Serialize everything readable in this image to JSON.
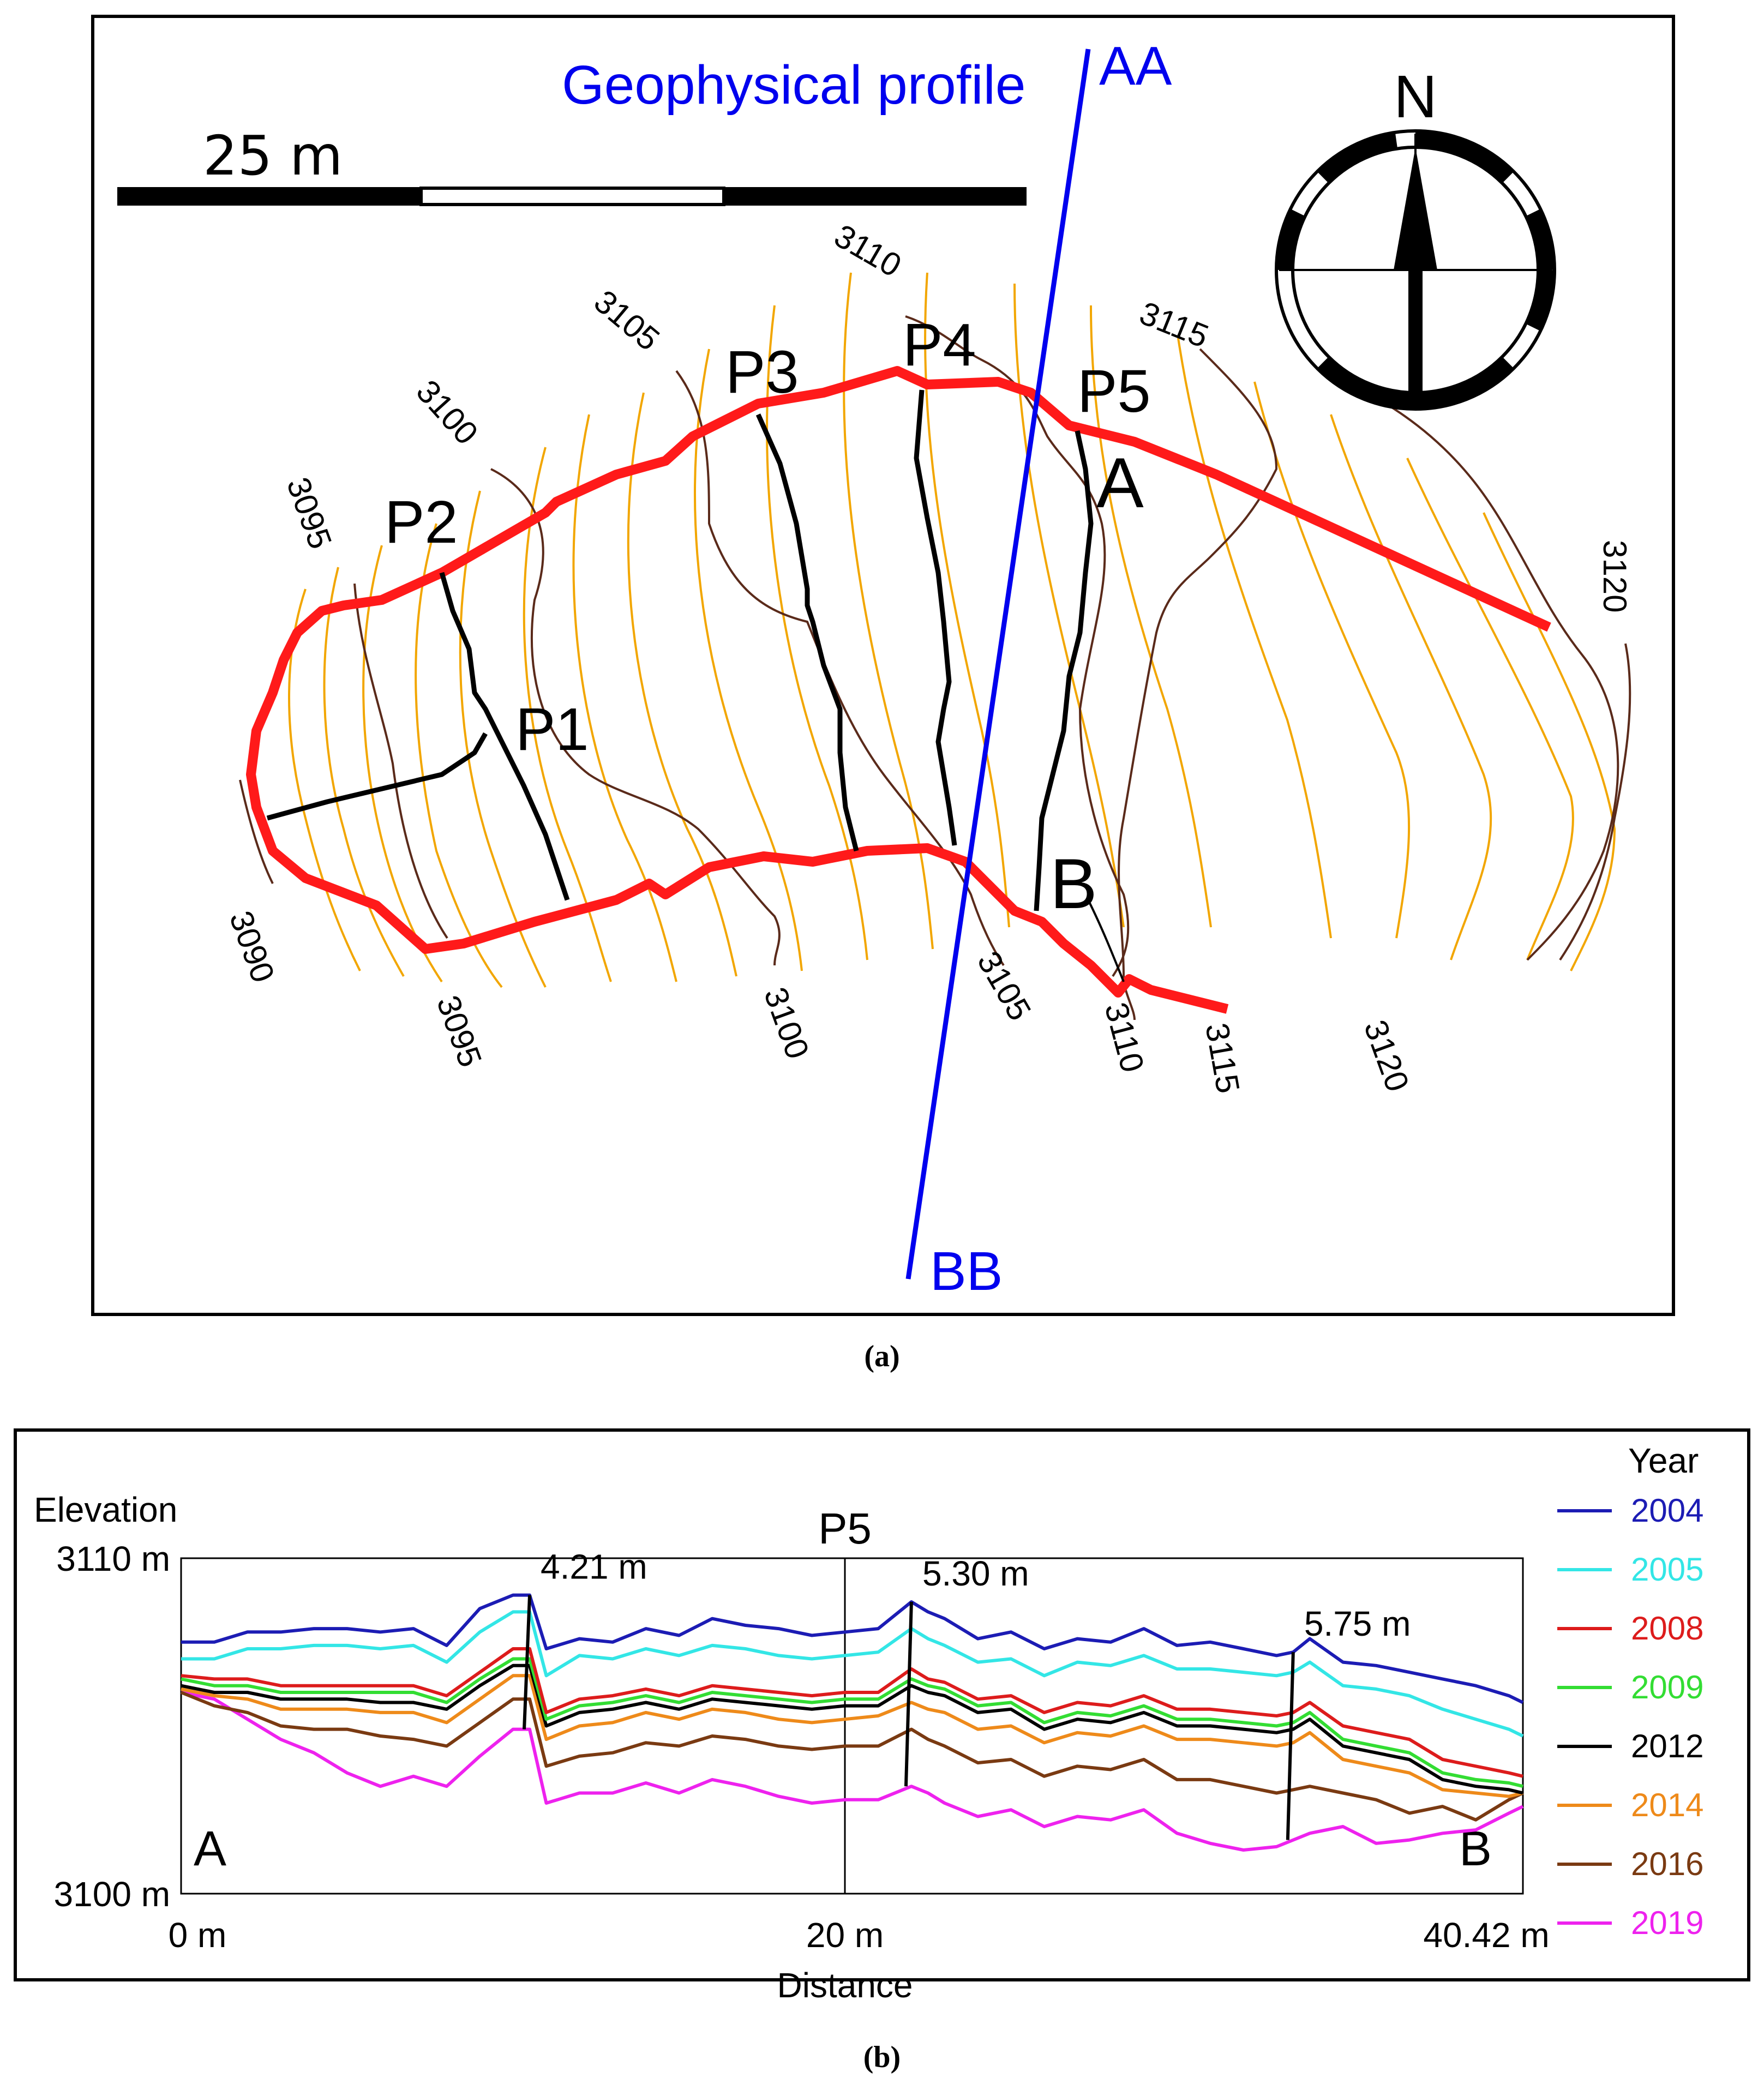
{
  "panel_a": {
    "profile_label": "Geophysical profile",
    "profile_end_top": "AA",
    "profile_end_bottom": "BB",
    "scale_label": "25 m",
    "north_label": "N",
    "contour_labels": [
      "3090",
      "3095",
      "3095",
      "3100",
      "3100",
      "3105",
      "3105",
      "3110",
      "3110",
      "3115",
      "3115",
      "3120",
      "3120"
    ],
    "profile_labels": [
      "P1",
      "P2",
      "P3",
      "P4",
      "P5"
    ],
    "section_start": "A",
    "section_end": "B",
    "caption": "(a)",
    "colors": {
      "boundary": "#ff1a1a",
      "profile": "#0000ee",
      "contour_major": "#5a2a1a",
      "contour_minor": "#f2a600",
      "profiles": "#000000"
    }
  },
  "panel_b": {
    "caption": "(b)",
    "ylabel": "Elevation",
    "xlabel": "Distance",
    "title": "P5",
    "y_ticks": [
      "3110 m",
      "3100 m"
    ],
    "x_ticks": [
      "0 m",
      "20 m",
      "40.42 m"
    ],
    "start_label": "A",
    "end_label": "B",
    "legend_title": "Year",
    "offset_labels": [
      "4.21 m",
      "5.30 m",
      "5.75 m"
    ]
  },
  "chart_data": {
    "type": "line",
    "title": "P5",
    "xlabel": "Distance",
    "ylabel": "Elevation",
    "xlim": [
      0,
      40.42
    ],
    "ylim": [
      3100,
      3110
    ],
    "legend_position": "right",
    "x": [
      0,
      1,
      2,
      3,
      4,
      5,
      6,
      7,
      8,
      9,
      10,
      10.5,
      11,
      12,
      13,
      14,
      15,
      16,
      17,
      18,
      19,
      20,
      21,
      22,
      22.5,
      23,
      24,
      25,
      26,
      27,
      28,
      29,
      30,
      31,
      32,
      33,
      33.5,
      34,
      35,
      36,
      37,
      38,
      39,
      40,
      40.42
    ],
    "series": [
      {
        "name": "2004",
        "color": "#1c1cb4",
        "values": [
          3107.5,
          3107.5,
          3107.8,
          3107.8,
          3107.9,
          3107.9,
          3107.8,
          3107.9,
          3107.4,
          3108.5,
          3108.9,
          3108.9,
          3107.3,
          3107.6,
          3107.5,
          3107.9,
          3107.7,
          3108.2,
          3108.0,
          3107.9,
          3107.7,
          3107.8,
          3107.9,
          3108.7,
          3108.4,
          3108.2,
          3107.6,
          3107.8,
          3107.3,
          3107.6,
          3107.5,
          3107.9,
          3107.4,
          3107.5,
          3107.3,
          3107.1,
          3107.2,
          3107.6,
          3106.9,
          3106.8,
          3106.6,
          3106.4,
          3106.2,
          3105.9,
          3105.7
        ]
      },
      {
        "name": "2005",
        "color": "#33e6e6",
        "values": [
          3107.0,
          3107.0,
          3107.3,
          3107.3,
          3107.4,
          3107.4,
          3107.3,
          3107.4,
          3106.9,
          3107.8,
          3108.4,
          3108.4,
          3106.5,
          3107.1,
          3107.0,
          3107.3,
          3107.1,
          3107.4,
          3107.3,
          3107.1,
          3107.0,
          3107.1,
          3107.2,
          3107.9,
          3107.6,
          3107.4,
          3106.9,
          3107.0,
          3106.5,
          3106.9,
          3106.8,
          3107.1,
          3106.7,
          3106.7,
          3106.6,
          3106.5,
          3106.6,
          3106.9,
          3106.2,
          3106.1,
          3105.9,
          3105.5,
          3105.2,
          3104.9,
          3104.7
        ]
      },
      {
        "name": "2008",
        "color": "#dd1c1c",
        "values": [
          3106.5,
          3106.4,
          3106.4,
          3106.2,
          3106.2,
          3106.2,
          3106.2,
          3106.2,
          3105.9,
          3106.6,
          3107.3,
          3107.3,
          3105.4,
          3105.8,
          3105.9,
          3106.1,
          3105.9,
          3106.2,
          3106.1,
          3106.0,
          3105.9,
          3106.0,
          3106.0,
          3106.7,
          3106.4,
          3106.3,
          3105.8,
          3105.9,
          3105.4,
          3105.7,
          3105.6,
          3105.9,
          3105.5,
          3105.5,
          3105.4,
          3105.3,
          3105.4,
          3105.7,
          3105.0,
          3104.8,
          3104.6,
          3104.0,
          3103.8,
          3103.6,
          3103.5
        ]
      },
      {
        "name": "2009",
        "color": "#33dd33",
        "values": [
          3106.4,
          3106.2,
          3106.2,
          3106.0,
          3106.0,
          3106.0,
          3106.0,
          3106.0,
          3105.7,
          3106.4,
          3107.0,
          3107.0,
          3105.2,
          3105.6,
          3105.7,
          3105.9,
          3105.7,
          3106.0,
          3105.9,
          3105.8,
          3105.7,
          3105.8,
          3105.8,
          3106.4,
          3106.2,
          3106.1,
          3105.6,
          3105.7,
          3105.1,
          3105.4,
          3105.3,
          3105.6,
          3105.2,
          3105.2,
          3105.1,
          3105.0,
          3105.1,
          3105.4,
          3104.6,
          3104.4,
          3104.2,
          3103.6,
          3103.4,
          3103.3,
          3103.2
        ]
      },
      {
        "name": "2012",
        "color": "#000000",
        "values": [
          3106.2,
          3106.0,
          3106.0,
          3105.8,
          3105.8,
          3105.8,
          3105.7,
          3105.7,
          3105.5,
          3106.2,
          3106.8,
          3106.8,
          3105.0,
          3105.4,
          3105.5,
          3105.7,
          3105.5,
          3105.8,
          3105.7,
          3105.6,
          3105.5,
          3105.6,
          3105.6,
          3106.2,
          3106.0,
          3105.9,
          3105.4,
          3105.5,
          3104.9,
          3105.2,
          3105.1,
          3105.4,
          3105.0,
          3105.0,
          3104.9,
          3104.8,
          3104.9,
          3105.2,
          3104.4,
          3104.2,
          3104.0,
          3103.4,
          3103.2,
          3103.1,
          3103.0
        ]
      },
      {
        "name": "2014",
        "color": "#ee8a1a",
        "values": [
          3106.1,
          3105.9,
          3105.8,
          3105.5,
          3105.5,
          3105.5,
          3105.4,
          3105.4,
          3105.1,
          3105.8,
          3106.5,
          3106.5,
          3104.6,
          3105.0,
          3105.1,
          3105.4,
          3105.2,
          3105.5,
          3105.4,
          3105.2,
          3105.1,
          3105.2,
          3105.3,
          3105.7,
          3105.5,
          3105.4,
          3104.9,
          3105.0,
          3104.5,
          3104.8,
          3104.7,
          3105.0,
          3104.6,
          3104.6,
          3104.5,
          3104.4,
          3104.5,
          3104.8,
          3104.0,
          3103.8,
          3103.6,
          3103.1,
          3103.0,
          3102.9,
          3103.0
        ]
      },
      {
        "name": "2016",
        "color": "#7a3a12",
        "values": [
          3106.0,
          3105.6,
          3105.4,
          3105.0,
          3104.9,
          3104.9,
          3104.7,
          3104.6,
          3104.4,
          3105.1,
          3105.8,
          3105.8,
          3103.8,
          3104.1,
          3104.2,
          3104.5,
          3104.4,
          3104.7,
          3104.6,
          3104.4,
          3104.3,
          3104.4,
          3104.4,
          3104.9,
          3104.6,
          3104.4,
          3103.9,
          3104.0,
          3103.5,
          3103.8,
          3103.7,
          3104.0,
          3103.4,
          3103.4,
          3103.2,
          3103.0,
          3103.1,
          3103.2,
          3103.0,
          3102.8,
          3102.4,
          3102.6,
          3102.2,
          3102.8,
          3103.0
        ]
      },
      {
        "name": "2019",
        "color": "#ee22ee",
        "values": [
          3106.0,
          3105.8,
          3105.2,
          3104.6,
          3104.2,
          3103.6,
          3103.2,
          3103.5,
          3103.2,
          3104.1,
          3104.9,
          3104.9,
          3102.7,
          3103.0,
          3103.0,
          3103.3,
          3103.0,
          3103.4,
          3103.2,
          3102.9,
          3102.7,
          3102.8,
          3102.8,
          3103.2,
          3103.0,
          3102.7,
          3102.3,
          3102.5,
          3102.0,
          3102.3,
          3102.2,
          3102.5,
          3101.8,
          3101.5,
          3101.3,
          3101.4,
          3101.6,
          3101.8,
          3102.0,
          3101.5,
          3101.6,
          3101.8,
          3101.9,
          3102.4,
          3102.6
        ]
      }
    ],
    "annotations": [
      {
        "text": "4.21 m",
        "x": 10.5
      },
      {
        "text": "5.30 m",
        "x": 22.2
      },
      {
        "text": "5.75 m",
        "x": 33.5
      }
    ]
  }
}
